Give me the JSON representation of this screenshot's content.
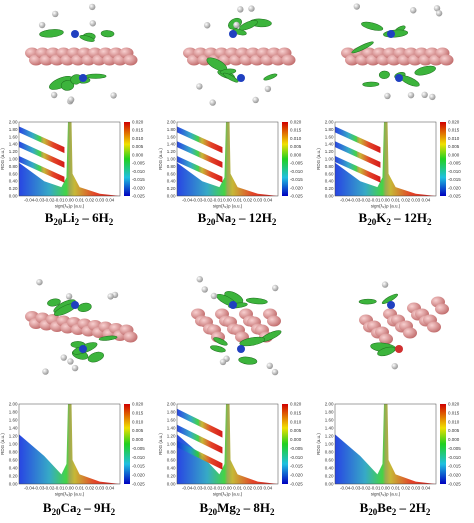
{
  "axes": {
    "y_label": "RDG (a.u.)",
    "x_label": "sign(λ₂)ρ (a.u.)",
    "yticks": [
      "0.00",
      "0.20",
      "0.40",
      "0.60",
      "0.80",
      "1.00",
      "1.20",
      "1.40",
      "1.60",
      "1.80",
      "2.00"
    ],
    "xticks": [
      "-0.04",
      "-0.03",
      "-0.02",
      "-0.01",
      "0.00",
      "0.01",
      "0.02",
      "0.03",
      "0.04"
    ],
    "colorbar_ticks": [
      "0.020",
      "0.015",
      "0.010",
      "0.005",
      "0.000",
      "-0.005",
      "-0.010",
      "-0.015",
      "-0.020",
      "-0.025"
    ]
  },
  "panels": [
    {
      "caption": [
        "B",
        "20",
        "Li",
        "2",
        " – 6H",
        "2"
      ]
    },
    {
      "caption": [
        "B",
        "20",
        "Na",
        "2",
        " – 12H",
        "2"
      ]
    },
    {
      "caption": [
        "B",
        "20",
        "K",
        "2",
        " – 12H",
        "2"
      ]
    },
    {
      "caption": [
        "B",
        "20",
        "Ca",
        "2",
        " – 9H",
        "2"
      ]
    },
    {
      "caption": [
        "B",
        "20",
        "Mg",
        "2",
        " – 8H",
        "2"
      ]
    },
    {
      "caption": [
        "B",
        "20",
        "Be",
        "2",
        " – 2H",
        "2"
      ]
    }
  ]
}
